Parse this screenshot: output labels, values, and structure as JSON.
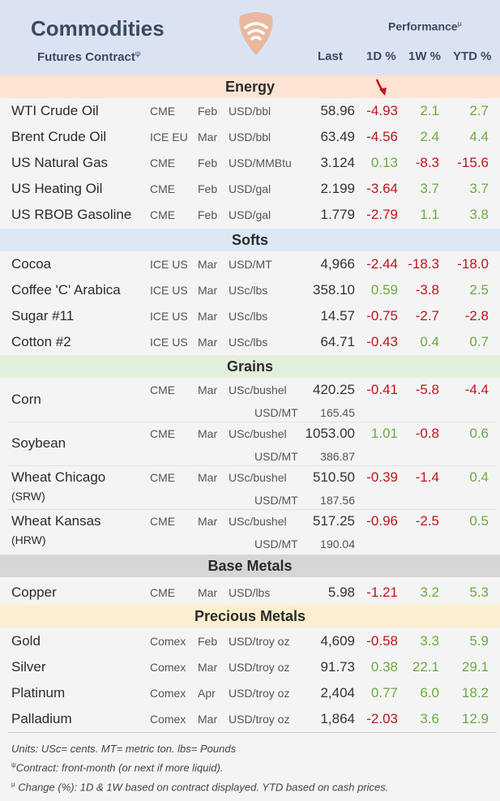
{
  "header": {
    "title": "Commodities",
    "subtitle": "Futures Contract",
    "subtitle_mark": "ψ",
    "performance": "Performance",
    "performance_mark": "µ",
    "col_last": "Last",
    "col_1d": "1D %",
    "col_1w": "1W %",
    "col_ytd": "YTD %"
  },
  "colors": {
    "header_bg": "#dbe3f3",
    "positive": "#6aab3f",
    "negative": "#c0141c",
    "energy_bg": "#fde3d3",
    "softs_bg": "#dbe8f5",
    "grains_bg": "#e2efdc",
    "base_bg": "#d6d6d6",
    "precious_bg": "#fcefcf"
  },
  "sections": {
    "energy": "Energy",
    "softs": "Softs",
    "grains": "Grains",
    "base": "Base Metals",
    "precious": "Precious Metals"
  },
  "energy": [
    {
      "name": "WTI Crude Oil",
      "exch": "CME",
      "mon": "Feb",
      "unit": "USD/bbl",
      "last": "58.96",
      "d1": "-4.93",
      "w1": "2.1",
      "ytd": "2.7"
    },
    {
      "name": "Brent Crude Oil",
      "exch": "ICE EU",
      "mon": "Mar",
      "unit": "USD/bbl",
      "last": "63.49",
      "d1": "-4.56",
      "w1": "2.4",
      "ytd": "4.4"
    },
    {
      "name": "US Natural Gas",
      "exch": "CME",
      "mon": "Feb",
      "unit": "USD/MMBtu",
      "last": "3.124",
      "d1": "0.13",
      "w1": "-8.3",
      "ytd": "-15.6"
    },
    {
      "name": "US Heating Oil",
      "exch": "CME",
      "mon": "Feb",
      "unit": "USD/gal",
      "last": "2.199",
      "d1": "-3.64",
      "w1": "3.7",
      "ytd": "3.7"
    },
    {
      "name": "US RBOB Gasoline",
      "exch": "CME",
      "mon": "Feb",
      "unit": "USD/gal",
      "last": "1.779",
      "d1": "-2.79",
      "w1": "1.1",
      "ytd": "3.8"
    }
  ],
  "softs": [
    {
      "name": "Cocoa",
      "exch": "ICE US",
      "mon": "Mar",
      "unit": "USD/MT",
      "last": "4,966",
      "d1": "-2.44",
      "w1": "-18.3",
      "ytd": "-18.0"
    },
    {
      "name": "Coffee 'C' Arabica",
      "exch": "ICE US",
      "mon": "Mar",
      "unit": "USc/lbs",
      "last": "358.10",
      "d1": "0.59",
      "w1": "-3.8",
      "ytd": "2.5"
    },
    {
      "name": "Sugar #11",
      "exch": "ICE US",
      "mon": "Mar",
      "unit": "USc/lbs",
      "last": "14.57",
      "d1": "-0.75",
      "w1": "-2.7",
      "ytd": "-2.8"
    },
    {
      "name": "Cotton #2",
      "exch": "ICE US",
      "mon": "Mar",
      "unit": "USc/lbs",
      "last": "64.71",
      "d1": "-0.43",
      "w1": "0.4",
      "ytd": "0.7"
    }
  ],
  "grains": [
    {
      "name": "Corn",
      "sub": "",
      "exch": "CME",
      "mon": "Mar",
      "unit": "USc/bushel",
      "last": "420.25",
      "unit2": "USD/MT",
      "last2": "165.45",
      "d1": "-0.41",
      "w1": "-5.8",
      "ytd": "-4.4"
    },
    {
      "name": "Soybean",
      "sub": "",
      "exch": "CME",
      "mon": "Mar",
      "unit": "USc/bushel",
      "last": "1053.00",
      "unit2": "USD/MT",
      "last2": "386.87",
      "d1": "1.01",
      "w1": "-0.8",
      "ytd": "0.6"
    },
    {
      "name": "Wheat Chicago",
      "sub": "(SRW)",
      "exch": "CME",
      "mon": "Mar",
      "unit": "USc/bushel",
      "last": "510.50",
      "unit2": "USD/MT",
      "last2": "187.56",
      "d1": "-0.39",
      "w1": "-1.4",
      "ytd": "0.4"
    },
    {
      "name": "Wheat Kansas",
      "sub": "(HRW)",
      "exch": "CME",
      "mon": "Mar",
      "unit": "USc/bushel",
      "last": "517.25",
      "unit2": "USD/MT",
      "last2": "190.04",
      "d1": "-0.96",
      "w1": "-2.5",
      "ytd": "0.5"
    }
  ],
  "base": [
    {
      "name": "Copper",
      "exch": "CME",
      "mon": "Mar",
      "unit": "USD/lbs",
      "last": "5.98",
      "d1": "-1.21",
      "w1": "3.2",
      "ytd": "5.3"
    }
  ],
  "precious": [
    {
      "name": "Gold",
      "exch": "Comex",
      "mon": "Feb",
      "unit": "USD/troy oz",
      "last": "4,609",
      "d1": "-0.58",
      "w1": "3.3",
      "ytd": "5.9"
    },
    {
      "name": "Silver",
      "exch": "Comex",
      "mon": "Mar",
      "unit": "USD/troy oz",
      "last": "91.73",
      "d1": "0.38",
      "w1": "22.1",
      "ytd": "29.1"
    },
    {
      "name": "Platinum",
      "exch": "Comex",
      "mon": "Apr",
      "unit": "USD/troy oz",
      "last": "2,404",
      "d1": "0.77",
      "w1": "6.0",
      "ytd": "18.2"
    },
    {
      "name": "Palladium",
      "exch": "Comex",
      "mon": "Mar",
      "unit": "USD/troy oz",
      "last": "1,864",
      "d1": "-2.03",
      "w1": "3.6",
      "ytd": "12.9"
    }
  ],
  "footer": {
    "units": "Units: USc= cents.  MT= metric ton.  lbs= Pounds",
    "contract_mark": "ψ",
    "contract": "Contract: front-month (or next if more liquid).",
    "change_mark": "µ",
    "change": " Change (%): 1D & 1W based on contract displayed. YTD based on cash prices."
  },
  "icons": {
    "logo": "wifi-pick-logo-icon",
    "arrow": "down-arrow-icon"
  }
}
